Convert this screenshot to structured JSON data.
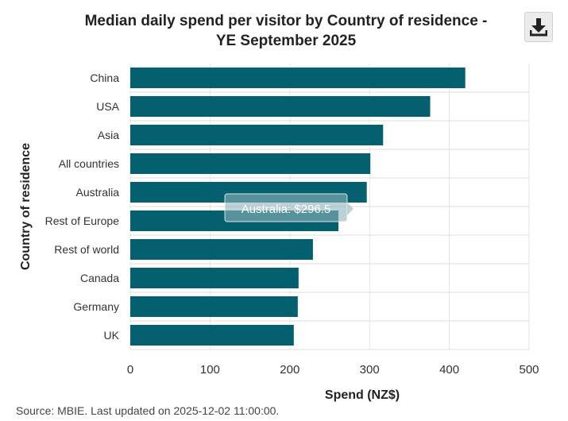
{
  "title_line1": "Median daily spend per visitor by Country of residence -",
  "title_line2": "YE September 2025",
  "source": "Source: MBIE. Last updated on 2025-12-02 11:00:00.",
  "tooltip": "Australia: $296.5",
  "icons": {
    "download": "download-icon"
  },
  "colors": {
    "bar": "#04606e"
  },
  "chart_data": {
    "type": "bar",
    "orientation": "horizontal",
    "title": "Median daily spend per visitor by Country of residence - YE September 2025",
    "xlabel": "Spend (NZ$)",
    "ylabel": "Country of residence",
    "xlim": [
      0,
      500
    ],
    "xticks": [
      0,
      100,
      200,
      300,
      400,
      500
    ],
    "grid": true,
    "categories": [
      "China",
      "USA",
      "Asia",
      "All countries",
      "Australia",
      "Rest of Europe",
      "Rest of world",
      "Canada",
      "Germany",
      "UK"
    ],
    "values": [
      420,
      376,
      317,
      301,
      296.5,
      261,
      229,
      211,
      210,
      205
    ]
  }
}
